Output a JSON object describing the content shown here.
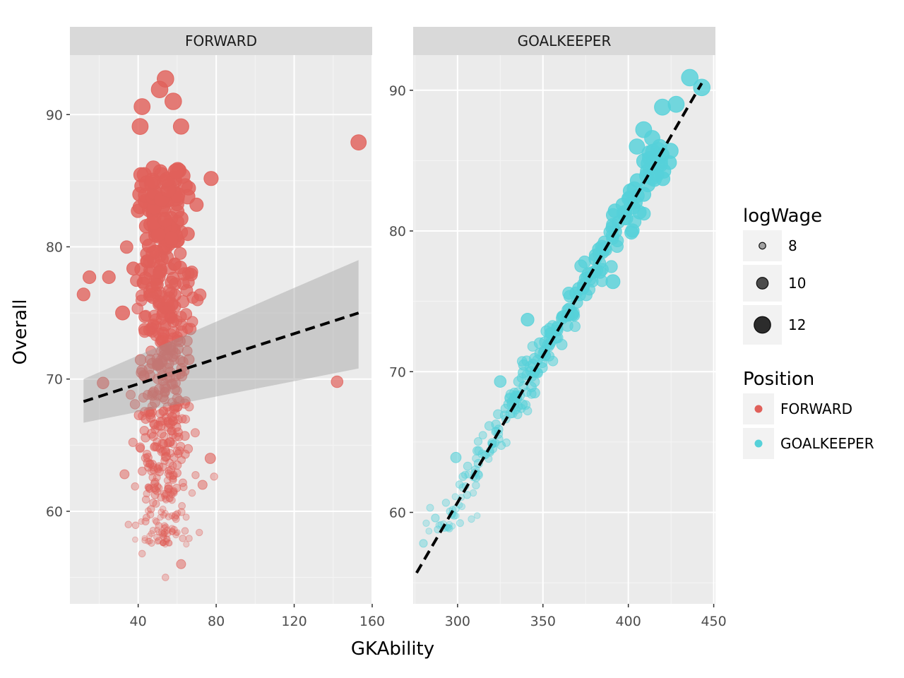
{
  "chart_data": {
    "type": "scatter",
    "xlabel": "GKAbility",
    "ylabel": "Overall",
    "colors": {
      "FORWARD": "#e0605a",
      "GOALKEEPER": "#56d1d9"
    },
    "panels": [
      {
        "name": "FORWARD",
        "xlim": [
          5,
          160
        ],
        "ylim": [
          53,
          94.5
        ],
        "x_ticks": [
          40,
          80,
          120,
          160
        ],
        "x_tick_labels": [
          "40",
          "80",
          "120",
          "160"
        ],
        "y_ticks": [
          60,
          70,
          80,
          90
        ],
        "y_tick_labels": [
          "60",
          "70",
          "80",
          "90"
        ],
        "trend": {
          "x": [
            12,
            153
          ],
          "y": [
            68.3,
            75.0
          ]
        },
        "ribbon": {
          "x": [
            12,
            153
          ],
          "lower": [
            66.7,
            70.8
          ],
          "upper": [
            70.0,
            79.0
          ]
        },
        "outliers": [
          {
            "x": 153,
            "y": 87.9,
            "w": 11.5
          },
          {
            "x": 142,
            "y": 69.8,
            "w": 10.0
          },
          {
            "x": 12,
            "y": 76.4,
            "w": 10.5
          },
          {
            "x": 15,
            "y": 77.7,
            "w": 10.5
          },
          {
            "x": 25,
            "y": 77.7,
            "w": 10.5
          },
          {
            "x": 22,
            "y": 69.7,
            "w": 10.0
          },
          {
            "x": 54,
            "y": 92.7,
            "w": 12.0
          },
          {
            "x": 51,
            "y": 91.9,
            "w": 12.0
          },
          {
            "x": 58,
            "y": 91.0,
            "w": 12.0
          },
          {
            "x": 42,
            "y": 90.6,
            "w": 11.8
          },
          {
            "x": 41,
            "y": 89.1,
            "w": 11.8
          },
          {
            "x": 62,
            "y": 89.1,
            "w": 11.6
          },
          {
            "x": 77,
            "y": 64.0,
            "w": 9.5
          },
          {
            "x": 73,
            "y": 62.0,
            "w": 9.0
          },
          {
            "x": 62,
            "y": 56.0,
            "w": 9.0
          },
          {
            "x": 54,
            "y": 55.0,
            "w": 8.0
          },
          {
            "x": 42,
            "y": 56.8,
            "w": 8.0
          },
          {
            "x": 35,
            "y": 59.0,
            "w": 8.0
          },
          {
            "x": 33,
            "y": 62.8,
            "w": 9.0
          },
          {
            "x": 32,
            "y": 75.0,
            "w": 11.0
          }
        ],
        "cloud": {
          "seed": 7,
          "count": 520,
          "x_center": 53,
          "x_spread": 6.5,
          "y_min": 57.5,
          "y_max": 86
        }
      },
      {
        "name": "GOALKEEPER",
        "xlim": [
          274,
          451
        ],
        "ylim": [
          53.5,
          92.5
        ],
        "x_ticks": [
          300,
          350,
          400,
          450
        ],
        "x_tick_labels": [
          "300",
          "350",
          "400",
          "450"
        ],
        "y_ticks": [
          60,
          70,
          80,
          90
        ],
        "y_tick_labels": [
          "60",
          "70",
          "80",
          "90"
        ],
        "trend": {
          "x": [
            276,
            443
          ],
          "y": [
            55.7,
            90.5
          ]
        },
        "ribbon": null,
        "outliers": [
          {
            "x": 436,
            "y": 90.9,
            "w": 12.0
          },
          {
            "x": 443,
            "y": 90.2,
            "w": 12.0
          },
          {
            "x": 428,
            "y": 89.0,
            "w": 11.8
          },
          {
            "x": 420,
            "y": 88.8,
            "w": 11.8
          },
          {
            "x": 409,
            "y": 87.2,
            "w": 11.8
          },
          {
            "x": 414,
            "y": 86.6,
            "w": 11.5
          },
          {
            "x": 405,
            "y": 86.0,
            "w": 11.5
          },
          {
            "x": 391,
            "y": 76.4,
            "w": 11.0
          },
          {
            "x": 341,
            "y": 73.7,
            "w": 10.5
          },
          {
            "x": 325,
            "y": 69.3,
            "w": 10.0
          },
          {
            "x": 299,
            "y": 63.9,
            "w": 9.5
          },
          {
            "x": 280,
            "y": 57.8,
            "w": 8.5
          },
          {
            "x": 287,
            "y": 59.6,
            "w": 8.5
          }
        ],
        "cloud": {
          "seed": 11,
          "count": 260,
          "x_center": 360,
          "x_spread": 0,
          "y_min": 58.5,
          "y_max": 86
        }
      }
    ],
    "legends": [
      {
        "title": "logWage",
        "type": "size",
        "entries": [
          {
            "label": "8",
            "w": 8
          },
          {
            "label": "10",
            "w": 10
          },
          {
            "label": "12",
            "w": 12
          }
        ]
      },
      {
        "title": "Position",
        "type": "color",
        "entries": [
          {
            "label": "FORWARD",
            "key": "FORWARD"
          },
          {
            "label": "GOALKEEPER",
            "key": "GOALKEEPER"
          }
        ]
      }
    ]
  }
}
